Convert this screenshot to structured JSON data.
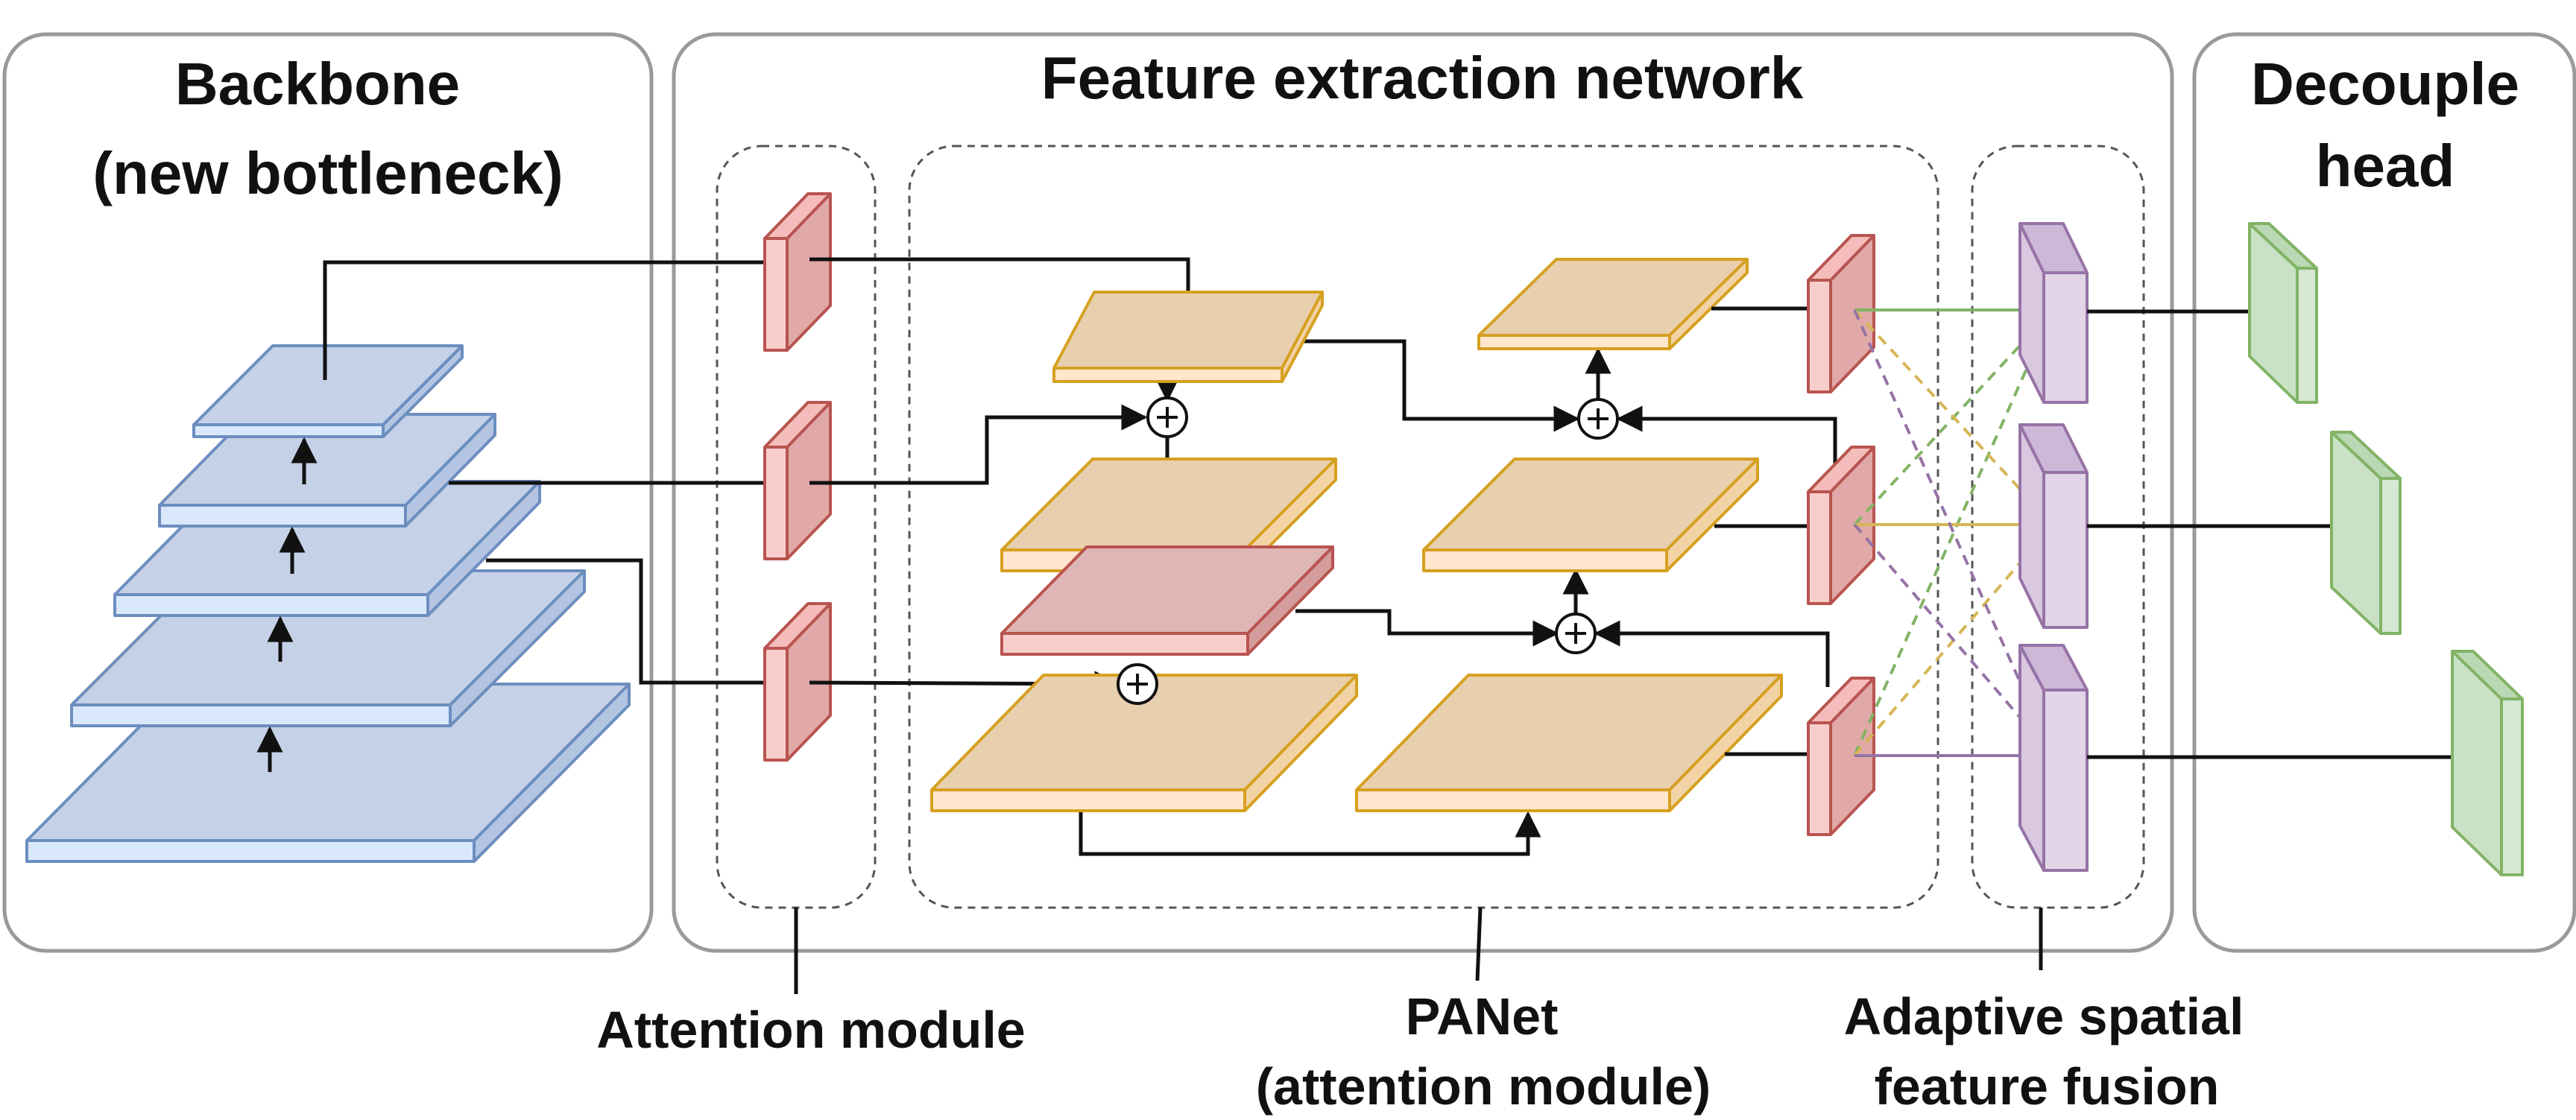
{
  "panels": {
    "backbone_title_line1": "Backbone",
    "backbone_title_line2": "(new bottleneck)",
    "feature_title": "Feature extraction network",
    "head_title_line1": "Decouple",
    "head_title_line2": "head"
  },
  "callouts": {
    "attention": "Attention module",
    "panet_line1": "PANet",
    "panet_line2": "(attention module)",
    "asff_line1": "Adaptive spatial",
    "asff_line2": "feature fusion"
  },
  "colors": {
    "backbone_fill": "#c5d1e6",
    "backbone_edge": "#6c8ebf",
    "attention_fill": "#f2c6c6",
    "attention_edge": "#b85450",
    "panet_fill": "#e8cfae",
    "panet_edge": "#d6a020",
    "panet_attn_fill": "#e0b5b5",
    "asff_fill": "#d9c8e0",
    "asff_edge": "#9673a6",
    "head_fill": "#c9e2c5",
    "head_edge": "#82b366",
    "fusion_green": "#82b366",
    "fusion_orange": "#d6b656",
    "fusion_purple": "#9673a6"
  },
  "icons": {
    "sum_node": "circled-plus",
    "arrow": "arrow-head"
  }
}
